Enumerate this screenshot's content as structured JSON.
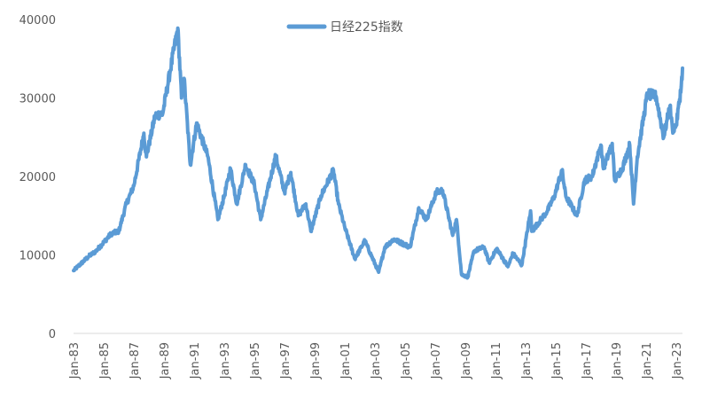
{
  "chart_data": {
    "type": "line",
    "title": "",
    "xlabel": "",
    "ylabel": "",
    "ylim": [
      0,
      40000
    ],
    "yticks": [
      0,
      10000,
      20000,
      30000,
      40000
    ],
    "xlim": [
      "Jan-83",
      "Jun-23"
    ],
    "xticks": [
      "Jan-83",
      "Jan-85",
      "Jan-87",
      "Jan-89",
      "Jan-91",
      "Jan-93",
      "Jan-95",
      "Jan-97",
      "Jan-99",
      "Jan-01",
      "Jan-03",
      "Jan-05",
      "Jan-07",
      "Jan-09",
      "Jan-11",
      "Jan-13",
      "Jan-15",
      "Jan-17",
      "Jan-19",
      "Jan-21",
      "Jan-23"
    ],
    "grid": false,
    "legend_position": "top",
    "color": "#5B9BD5",
    "series": [
      {
        "name": "日经225指数",
        "points": [
          [
            "1983-01",
            8000
          ],
          [
            "1984-01",
            9800
          ],
          [
            "1984-07",
            10500
          ],
          [
            "1985-01",
            11600
          ],
          [
            "1985-07",
            12700
          ],
          [
            "1986-01",
            13000
          ],
          [
            "1986-07",
            16500
          ],
          [
            "1987-01",
            18800
          ],
          [
            "1987-09",
            25500
          ],
          [
            "1987-11",
            22500
          ],
          [
            "1988-06",
            27800
          ],
          [
            "1988-12",
            28000
          ],
          [
            "1989-06",
            33500
          ],
          [
            "1989-12",
            38900
          ],
          [
            "1990-03",
            30000
          ],
          [
            "1990-05",
            32500
          ],
          [
            "1990-10",
            21500
          ],
          [
            "1991-03",
            26800
          ],
          [
            "1991-12",
            22500
          ],
          [
            "1992-08",
            14500
          ],
          [
            "1993-01",
            17500
          ],
          [
            "1993-06",
            21000
          ],
          [
            "1993-11",
            16500
          ],
          [
            "1994-06",
            21500
          ],
          [
            "1995-01",
            19000
          ],
          [
            "1995-06",
            14500
          ],
          [
            "1996-06",
            22600
          ],
          [
            "1997-01",
            18000
          ],
          [
            "1997-06",
            20500
          ],
          [
            "1997-12",
            15000
          ],
          [
            "1998-06",
            16500
          ],
          [
            "1998-10",
            13000
          ],
          [
            "1999-06",
            17500
          ],
          [
            "2000-04",
            20800
          ],
          [
            "2000-08",
            16500
          ],
          [
            "2001-01",
            13500
          ],
          [
            "2001-09",
            9500
          ],
          [
            "2002-05",
            11800
          ],
          [
            "2003-04",
            7800
          ],
          [
            "2003-09",
            11000
          ],
          [
            "2004-04",
            12000
          ],
          [
            "2005-05",
            11000
          ],
          [
            "2005-12",
            16000
          ],
          [
            "2006-06",
            14500
          ],
          [
            "2007-02",
            18000
          ],
          [
            "2007-07",
            18200
          ],
          [
            "2008-03",
            12500
          ],
          [
            "2008-06",
            14500
          ],
          [
            "2008-10",
            7500
          ],
          [
            "2009-03",
            7200
          ],
          [
            "2009-08",
            10500
          ],
          [
            "2010-04",
            11000
          ],
          [
            "2010-08",
            9000
          ],
          [
            "2011-02",
            10800
          ],
          [
            "2011-11",
            8500
          ],
          [
            "2012-03",
            10200
          ],
          [
            "2012-10",
            8700
          ],
          [
            "2013-05",
            15600
          ],
          [
            "2013-06",
            13000
          ],
          [
            "2014-06",
            15500
          ],
          [
            "2014-12",
            17500
          ],
          [
            "2015-06",
            20800
          ],
          [
            "2015-09",
            17500
          ],
          [
            "2016-06",
            15000
          ],
          [
            "2016-12",
            19500
          ],
          [
            "2017-06",
            20000
          ],
          [
            "2018-01",
            24000
          ],
          [
            "2018-03",
            21000
          ],
          [
            "2018-10",
            24200
          ],
          [
            "2018-12",
            19500
          ],
          [
            "2019-06",
            21000
          ],
          [
            "2019-12",
            24000
          ],
          [
            "2020-03",
            16500
          ],
          [
            "2020-06",
            22500
          ],
          [
            "2021-02",
            30500
          ],
          [
            "2021-09",
            30200
          ],
          [
            "2022-03",
            25000
          ],
          [
            "2022-08",
            29000
          ],
          [
            "2022-10",
            26000
          ],
          [
            "2023-01",
            26500
          ],
          [
            "2023-05",
            31500
          ],
          [
            "2023-06",
            33800
          ]
        ]
      }
    ]
  }
}
